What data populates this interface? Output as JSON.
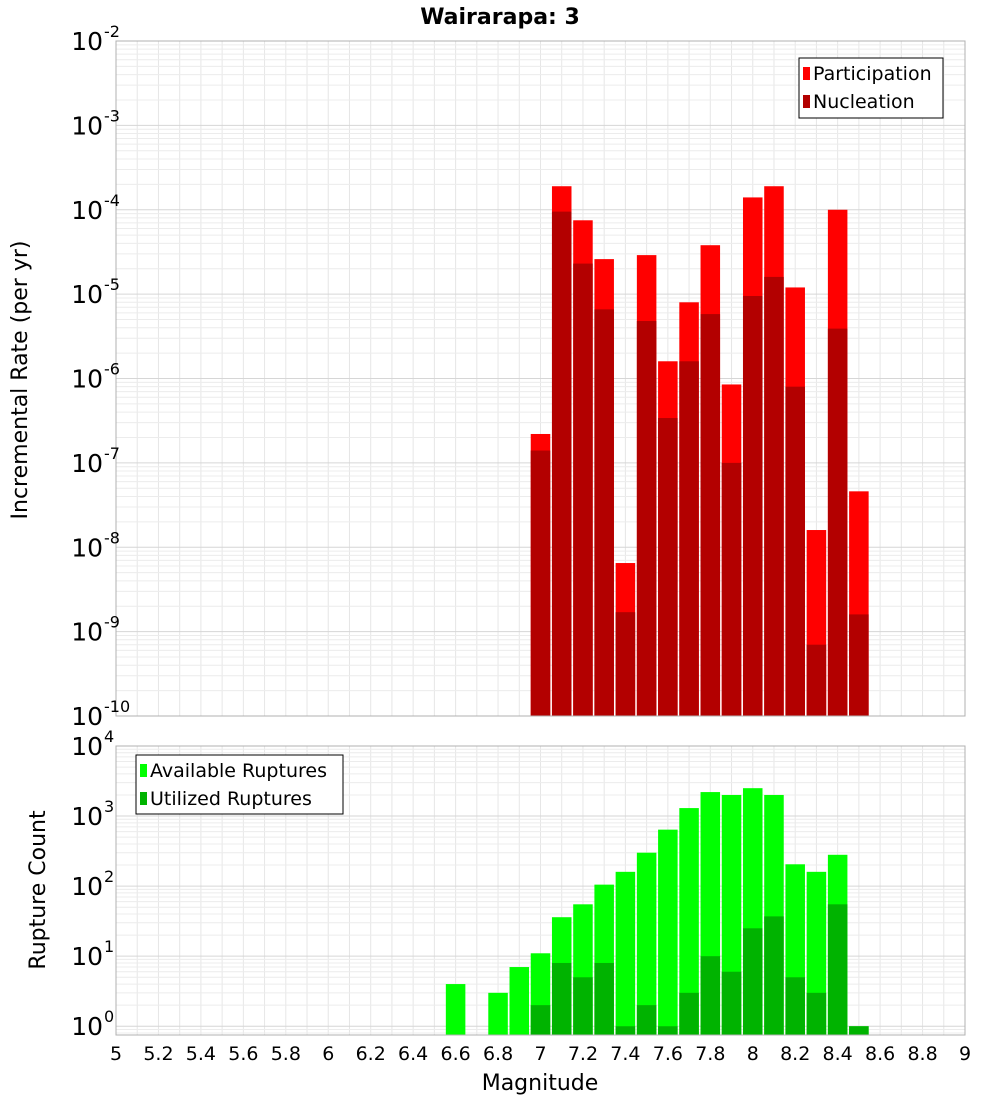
{
  "title": "Wairarapa: 3",
  "x_axis_label": "Magnitude",
  "colors": {
    "participation": "#ff0000",
    "nucleation": "#b30000",
    "available": "#00ff00",
    "utilized": "#00b300",
    "grid": "#e6e6e6",
    "frame": "#b0b0b0"
  },
  "chart_data": [
    {
      "type": "bar",
      "title": "Wairarapa: 3",
      "xlabel": "Magnitude",
      "ylabel": "Incremental Rate (per yr)",
      "yscale": "log",
      "xlim": [
        5,
        9
      ],
      "ylim": [
        1e-10,
        0.01
      ],
      "legend_position": "top-right",
      "x": [
        7.0,
        7.1,
        7.2,
        7.3,
        7.4,
        7.5,
        7.6,
        7.7,
        7.8,
        7.9,
        8.0,
        8.1,
        8.2,
        8.3,
        8.4,
        8.5
      ],
      "series": [
        {
          "name": "Participation",
          "values": [
            2.2e-07,
            0.00019,
            7.5e-05,
            2.6e-05,
            6.5e-09,
            2.9e-05,
            1.6e-06,
            8e-06,
            3.8e-05,
            8.5e-07,
            0.00014,
            0.00019,
            1.2e-05,
            1.6e-08,
            0.0001,
            4.6e-08
          ]
        },
        {
          "name": "Nucleation",
          "values": [
            1.4e-07,
            9.5e-05,
            2.3e-05,
            6.6e-06,
            1.7e-09,
            4.8e-06,
            3.4e-07,
            1.6e-06,
            5.8e-06,
            1e-07,
            9.5e-06,
            1.6e-05,
            8e-07,
            7e-10,
            3.9e-06,
            1.6e-09
          ]
        }
      ]
    },
    {
      "type": "bar",
      "xlabel": "Magnitude",
      "ylabel": "Rupture Count",
      "yscale": "log",
      "xlim": [
        5,
        9
      ],
      "ylim": [
        0.75,
        10000
      ],
      "legend_position": "top-left",
      "x": [
        6.6,
        6.7,
        6.8,
        6.9,
        7.0,
        7.1,
        7.2,
        7.3,
        7.4,
        7.5,
        7.6,
        7.7,
        7.8,
        7.9,
        8.0,
        8.1,
        8.2,
        8.3,
        8.4,
        8.5
      ],
      "series": [
        {
          "name": "Available Ruptures",
          "values": [
            4,
            0,
            3,
            7,
            11,
            36,
            55,
            105,
            160,
            300,
            640,
            1300,
            2200,
            2000,
            2500,
            2000,
            205,
            160,
            280,
            1
          ]
        },
        {
          "name": "Utilized Ruptures",
          "values": [
            0,
            0,
            0,
            0,
            2,
            8,
            5,
            8,
            1,
            2,
            1,
            3,
            10,
            6,
            25,
            37,
            5,
            3,
            55,
            1
          ]
        }
      ]
    }
  ],
  "x_ticks": [
    "5",
    "5.2",
    "5.4",
    "5.6",
    "5.8",
    "6",
    "6.2",
    "6.4",
    "6.6",
    "6.8",
    "7",
    "7.2",
    "7.4",
    "7.6",
    "7.8",
    "8",
    "8.2",
    "8.4",
    "8.6",
    "8.8",
    "9"
  ],
  "top_y_ticks": [
    {
      "base": "10",
      "exp": "-2"
    },
    {
      "base": "10",
      "exp": "-3"
    },
    {
      "base": "10",
      "exp": "-4"
    },
    {
      "base": "10",
      "exp": "-5"
    },
    {
      "base": "10",
      "exp": "-6"
    },
    {
      "base": "10",
      "exp": "-7"
    },
    {
      "base": "10",
      "exp": "-8"
    },
    {
      "base": "10",
      "exp": "-9"
    },
    {
      "base": "10",
      "exp": "-10"
    }
  ],
  "bottom_y_ticks": [
    {
      "base": "10",
      "exp": "4"
    },
    {
      "base": "10",
      "exp": "3"
    },
    {
      "base": "10",
      "exp": "2"
    },
    {
      "base": "10",
      "exp": "1"
    },
    {
      "base": "10",
      "exp": "0"
    }
  ]
}
